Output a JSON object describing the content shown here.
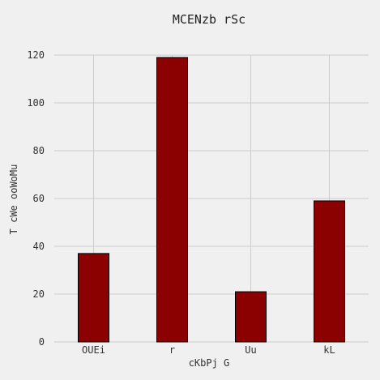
{
  "chart_data": {
    "type": "bar",
    "title": "MCENzb rSc",
    "xlabel": "cKbPj G",
    "ylabel": "T cWe ooWoMu",
    "categories": [
      "OUEi",
      "r",
      "Uu",
      "kL"
    ],
    "values": [
      37,
      119,
      21,
      59
    ],
    "ylim": [
      0,
      120
    ],
    "yticks": [
      0,
      20,
      40,
      60,
      80,
      100,
      120
    ],
    "grid": true,
    "bar_color": "#8b0000",
    "background_color": "#f0f0f0",
    "grid_color": "#cccccc"
  }
}
